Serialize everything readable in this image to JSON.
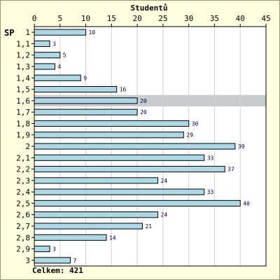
{
  "chart_data": {
    "type": "bar",
    "orientation": "horizontal",
    "title": "Studentů",
    "ylabel": "SP",
    "categories": [
      "1",
      "1,1",
      "1,2",
      "1,3",
      "1,4",
      "1,5",
      "1,6",
      "1,7",
      "1,8",
      "1,9",
      "2",
      "2,1",
      "2,2",
      "2,3",
      "2,4",
      "2,5",
      "2,6",
      "2,7",
      "2,8",
      "2,9",
      "3"
    ],
    "values": [
      10,
      3,
      5,
      4,
      9,
      16,
      20,
      20,
      30,
      29,
      39,
      33,
      37,
      24,
      33,
      40,
      24,
      21,
      14,
      3,
      7
    ],
    "xlim": [
      0,
      45
    ],
    "xticks": [
      0,
      5,
      10,
      15,
      20,
      25,
      30,
      35,
      40,
      45
    ],
    "grid": true,
    "highlighted_category": "1,6",
    "total_text": "Celkem: 421",
    "colors": {
      "bar_fill": "#add8e6",
      "bar_stroke": "#000000",
      "plot_bg": "#ffffff",
      "page_bg": "#ffffe0",
      "highlight_band": "#c8cccc",
      "grid": "#d0d0d0"
    }
  }
}
